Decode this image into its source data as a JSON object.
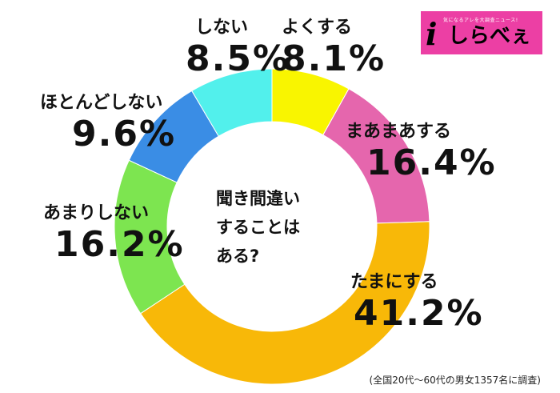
{
  "chart_data": {
    "type": "pie",
    "donut": true,
    "center_text": [
      "聞き間違い",
      "することは",
      "ある?"
    ],
    "slices": [
      {
        "label": "よくする",
        "value": 8.1,
        "display": "8.1%",
        "color": "#f9f500"
      },
      {
        "label": "まあまあする",
        "value": 16.4,
        "display": "16.4%",
        "color": "#e566ad"
      },
      {
        "label": "たまにする",
        "value": 41.2,
        "display": "41.2%",
        "color": "#f8b808"
      },
      {
        "label": "あまりしない",
        "value": 16.2,
        "display": "16.2%",
        "color": "#7de550"
      },
      {
        "label": "ほとんどしない",
        "value": 9.6,
        "display": "9.6%",
        "color": "#3a8de5"
      },
      {
        "label": "しない",
        "value": 8.5,
        "display": "8.5%",
        "color": "#52f0ec"
      }
    ],
    "footnote": "(全国20代～60代の男女1357名に調査)"
  },
  "logo": {
    "letter": "i",
    "text": "しらべぇ",
    "tagline": "気になるアレを大調査ニュース!",
    "color": "#ec3fa4"
  }
}
